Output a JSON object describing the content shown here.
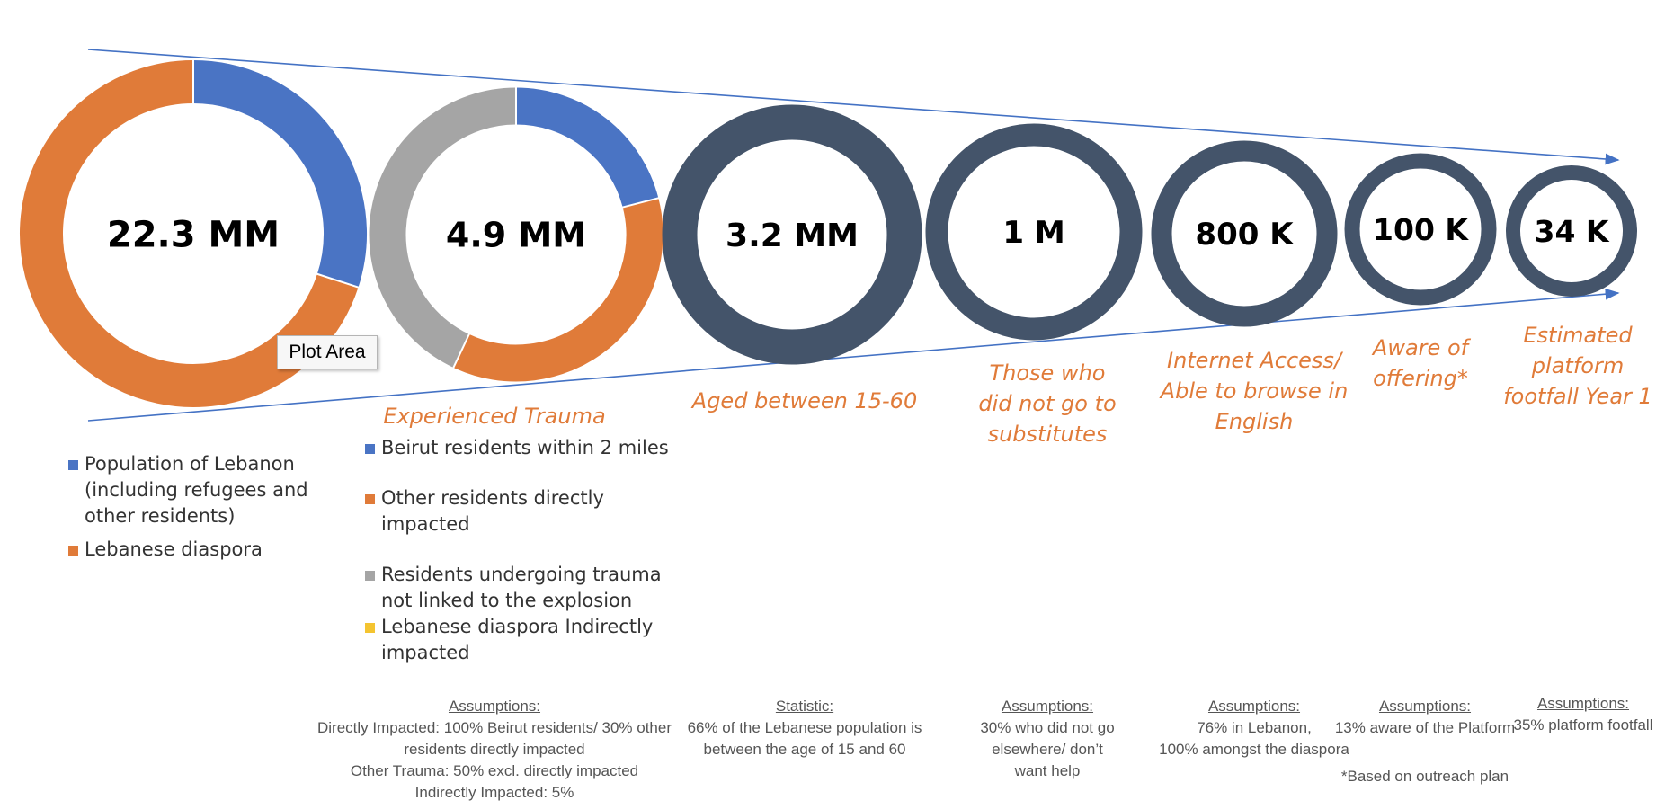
{
  "chart_data": {
    "type": "funnel",
    "stages": [
      {
        "value_label": "22.3 MM",
        "label": "",
        "segments": [
          {
            "name": "Population of Lebanon (including refugees and other residents)",
            "fraction": 0.3,
            "color": "#4a74c4"
          },
          {
            "name": "Lebanese diaspora",
            "fraction": 0.7,
            "color": "#e07b39"
          }
        ]
      },
      {
        "value_label": "4.9 MM",
        "label": "Experienced Trauma",
        "segments": [
          {
            "name": "Beirut residents within 2 miles",
            "fraction": 0.21,
            "color": "#4a74c4"
          },
          {
            "name": "Other residents directly impacted",
            "fraction": 0.36,
            "color": "#e07b39"
          },
          {
            "name": "Residents undergoing trauma not linked to the explosion",
            "fraction": 0.43,
            "color": "#a5a5a5"
          },
          {
            "name": "Lebanese diaspora Indirectly impacted",
            "fraction": 0.0,
            "color": "#f4c430"
          }
        ]
      },
      {
        "value_label": "3.2 MM",
        "label": "Aged between 15-60",
        "segments": [
          {
            "fraction": 1,
            "color": "#44546a"
          }
        ]
      },
      {
        "value_label": "1 M",
        "label": "Those who did not go to substitutes",
        "segments": [
          {
            "fraction": 1,
            "color": "#44546a"
          }
        ]
      },
      {
        "value_label": "800 K",
        "label": "Internet Access/ Able to browse in English",
        "segments": [
          {
            "fraction": 1,
            "color": "#44546a"
          }
        ]
      },
      {
        "value_label": "100 K",
        "label": "Aware of offering*",
        "segments": [
          {
            "fraction": 1,
            "color": "#44546a"
          }
        ]
      },
      {
        "value_label": "34 K",
        "label": "Estimated platform footfall Year 1",
        "segments": [
          {
            "fraction": 1,
            "color": "#44546a"
          }
        ]
      }
    ]
  },
  "labels": {
    "stage2": [
      "Experienced Trauma"
    ],
    "stage3": [
      "Aged between 15-60"
    ],
    "stage4": [
      "Those who",
      "did not go to",
      "substitutes"
    ],
    "stage5": [
      "Internet Access/",
      "Able to browse in",
      "English"
    ],
    "stage6": [
      "Aware of",
      "offering*"
    ],
    "stage7": [
      "Estimated",
      "platform",
      "footfall Year 1"
    ]
  },
  "legend1": [
    {
      "text": "Population of Lebanon (including refugees and other residents)",
      "color": "#4a74c4"
    },
    {
      "text": "Lebanese diaspora",
      "color": "#e07b39"
    }
  ],
  "legend2": [
    {
      "text": "Beirut residents within 2 miles",
      "color": "#4a74c4"
    },
    {
      "text": "Other residents directly impacted",
      "color": "#e07b39"
    },
    {
      "text": "Residents undergoing trauma not linked to the explosion",
      "color": "#a5a5a5"
    },
    {
      "text": "Lebanese diaspora Indirectly impacted",
      "color": "#f4c430"
    }
  ],
  "assumptions": {
    "a2": {
      "heading": "Assumptions:",
      "lines": [
        "Directly Impacted: 100% Beirut residents/ 30% other",
        "residents directly impacted",
        "Other Trauma: 50% excl. directly impacted",
        "Indirectly Impacted: 5%"
      ]
    },
    "a3": {
      "heading": "Statistic:",
      "lines": [
        "66% of the Lebanese population is",
        "between the age of 15 and 60"
      ]
    },
    "a4": {
      "heading": "Assumptions:",
      "lines": [
        "30% who did not go",
        "elsewhere/ don’t",
        "want help"
      ]
    },
    "a5": {
      "heading": "Assumptions:",
      "lines": [
        "76% in Lebanon,",
        "100% amongst the diaspora"
      ]
    },
    "a6": {
      "heading": "Assumptions:",
      "lines": [
        "13% aware of the Platform"
      ]
    },
    "a7": {
      "heading": "Assumptions:",
      "lines": [
        "35% platform footfall"
      ]
    }
  },
  "footnote": "*Based on outreach plan",
  "tooltip": "Plot Area",
  "colors": {
    "blue": "#4a74c4",
    "orange": "#e07b39",
    "gray": "#a5a5a5",
    "yellow": "#f4c430",
    "navy": "#44546a",
    "arrow": "#4472c4"
  }
}
